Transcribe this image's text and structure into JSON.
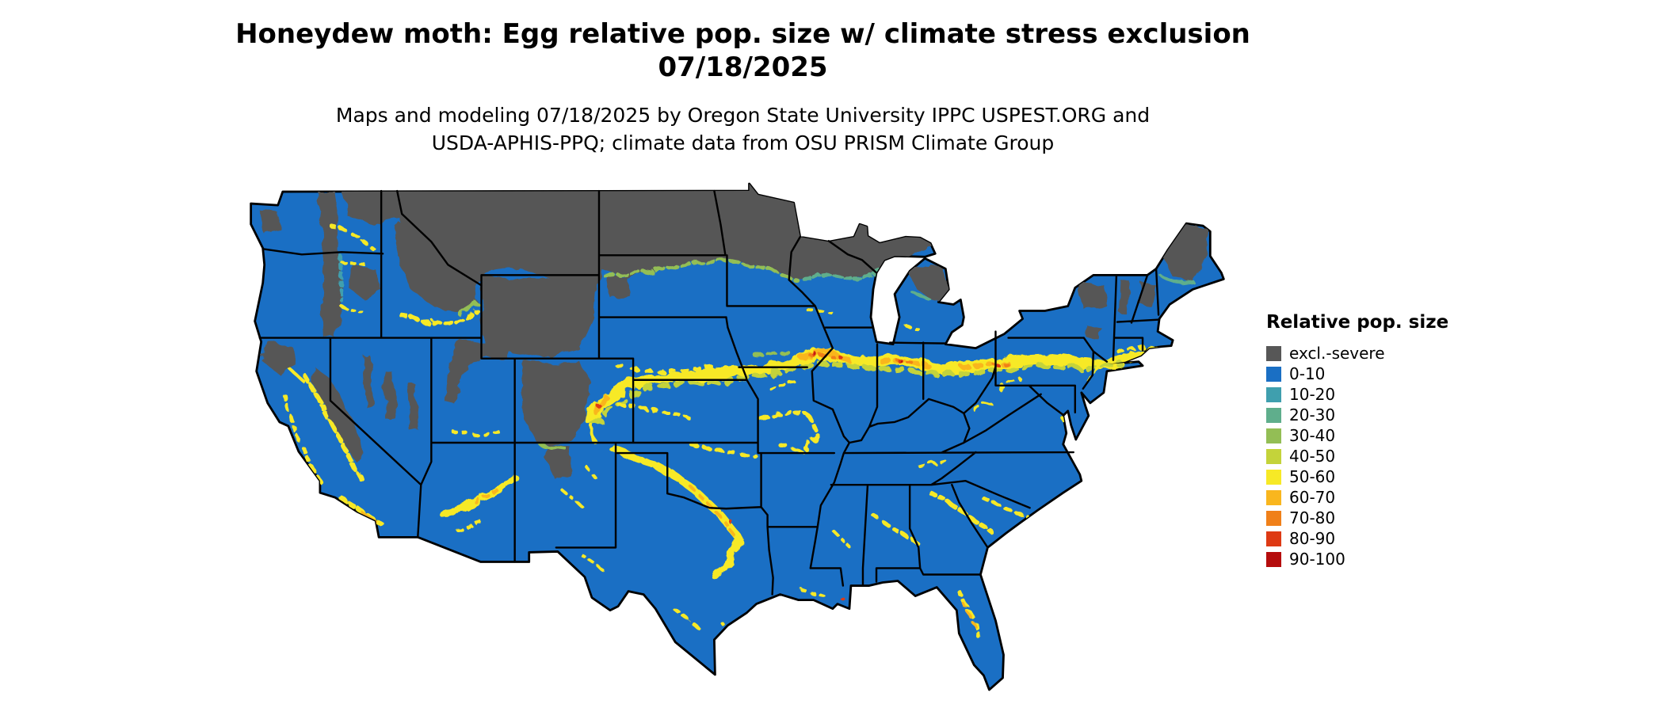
{
  "title": {
    "line1": "Honeydew moth: Egg relative pop. size w/ climate stress exclusion",
    "line2": "07/18/2025"
  },
  "subtitle": {
    "line1": "Maps and modeling 07/18/2025 by Oregon State University IPPC USPEST.ORG and",
    "line2": "USDA-APHIS-PPQ; climate data from OSU PRISM Climate Group"
  },
  "legend": {
    "title": "Relative pop. size",
    "items": [
      {
        "label": "excl.-severe",
        "color": "#575757"
      },
      {
        "label": "0-10",
        "color": "#1A6FC4"
      },
      {
        "label": "10-20",
        "color": "#3F9FAE"
      },
      {
        "label": "20-30",
        "color": "#5FAE8C"
      },
      {
        "label": "30-40",
        "color": "#93BE55"
      },
      {
        "label": "40-50",
        "color": "#C4D33A"
      },
      {
        "label": "50-60",
        "color": "#F7E926"
      },
      {
        "label": "60-70",
        "color": "#F9B61E"
      },
      {
        "label": "70-80",
        "color": "#F08019"
      },
      {
        "label": "80-90",
        "color": "#DE3A14"
      },
      {
        "label": "90-100",
        "color": "#B50D0D"
      }
    ]
  }
}
